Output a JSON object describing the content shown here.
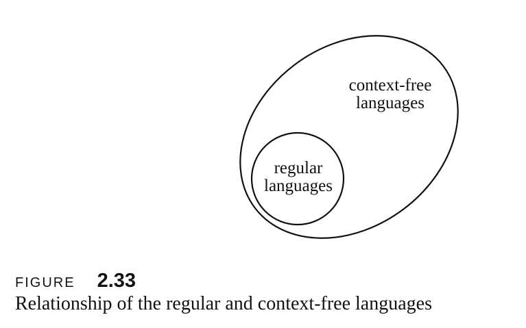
{
  "diagram": {
    "outer_set": {
      "label_lines": [
        "context-free",
        "languages"
      ]
    },
    "inner_set": {
      "label_lines": [
        "regular",
        "languages"
      ]
    }
  },
  "figure": {
    "word": "FIGURE",
    "number": "2.33",
    "caption": "Relationship of the regular and context-free languages"
  }
}
